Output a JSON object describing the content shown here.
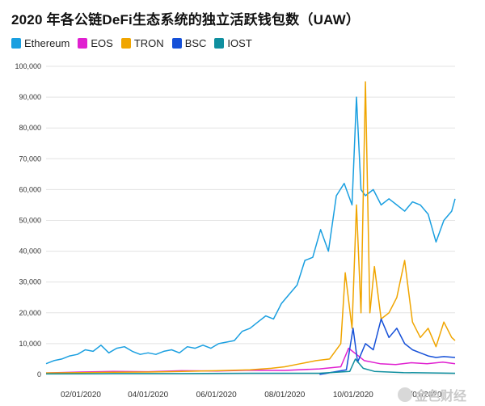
{
  "title": "2020 年各公链DeFi生态系统的独立活跃钱包数（UAW）",
  "watermark": "金色财经",
  "legend": [
    {
      "name": "Ethereum",
      "color": "#1a9fe0"
    },
    {
      "name": "EOS",
      "color": "#e020d0"
    },
    {
      "name": "TRON",
      "color": "#f0a500"
    },
    {
      "name": "BSC",
      "color": "#1550d8"
    },
    {
      "name": "IOST",
      "color": "#0f8f9f"
    }
  ],
  "chart_data": {
    "type": "line",
    "title": "2020 年各公链DeFi生态系统的独立活跃钱包数（UAW）",
    "xlabel": "",
    "ylabel": "",
    "xlim": [
      "2020-01-01",
      "2020-12-31"
    ],
    "ylim": [
      0,
      100000
    ],
    "y_ticks": [
      "0",
      "10,000",
      "20,000",
      "30,000",
      "40,000",
      "50,000",
      "60,000",
      "70,000",
      "80,000",
      "90,000",
      "100,000"
    ],
    "x_ticks": [
      "02/01/2020",
      "04/01/2020",
      "06/01/2020",
      "08/01/2020",
      "10/01/2020",
      "12/01/2020"
    ],
    "grid": "horizontal",
    "legend_position": "top-left",
    "series": [
      {
        "name": "Ethereum",
        "color": "#1a9fe0",
        "points": [
          [
            "2020-01-01",
            3500
          ],
          [
            "2020-01-08",
            4500
          ],
          [
            "2020-01-15",
            5000
          ],
          [
            "2020-01-22",
            6000
          ],
          [
            "2020-01-29",
            6500
          ],
          [
            "2020-02-05",
            8000
          ],
          [
            "2020-02-12",
            7500
          ],
          [
            "2020-02-19",
            9500
          ],
          [
            "2020-02-26",
            7000
          ],
          [
            "2020-03-04",
            8500
          ],
          [
            "2020-03-11",
            9000
          ],
          [
            "2020-03-18",
            7500
          ],
          [
            "2020-03-25",
            6500
          ],
          [
            "2020-04-01",
            7000
          ],
          [
            "2020-04-08",
            6500
          ],
          [
            "2020-04-15",
            7500
          ],
          [
            "2020-04-22",
            8000
          ],
          [
            "2020-04-29",
            7000
          ],
          [
            "2020-05-06",
            9000
          ],
          [
            "2020-05-13",
            8500
          ],
          [
            "2020-05-20",
            9500
          ],
          [
            "2020-05-27",
            8500
          ],
          [
            "2020-06-03",
            10000
          ],
          [
            "2020-06-10",
            10500
          ],
          [
            "2020-06-17",
            11000
          ],
          [
            "2020-06-24",
            14000
          ],
          [
            "2020-07-01",
            15000
          ],
          [
            "2020-07-08",
            17000
          ],
          [
            "2020-07-15",
            19000
          ],
          [
            "2020-07-22",
            18000
          ],
          [
            "2020-07-29",
            23000
          ],
          [
            "2020-08-05",
            26000
          ],
          [
            "2020-08-12",
            29000
          ],
          [
            "2020-08-19",
            37000
          ],
          [
            "2020-08-26",
            38000
          ],
          [
            "2020-09-02",
            47000
          ],
          [
            "2020-09-09",
            40000
          ],
          [
            "2020-09-16",
            58000
          ],
          [
            "2020-09-23",
            62000
          ],
          [
            "2020-09-30",
            55000
          ],
          [
            "2020-10-04",
            90000
          ],
          [
            "2020-10-08",
            60000
          ],
          [
            "2020-10-12",
            58000
          ],
          [
            "2020-10-19",
            60000
          ],
          [
            "2020-10-26",
            55000
          ],
          [
            "2020-11-02",
            57000
          ],
          [
            "2020-11-09",
            55000
          ],
          [
            "2020-11-16",
            53000
          ],
          [
            "2020-11-23",
            56000
          ],
          [
            "2020-11-30",
            55000
          ],
          [
            "2020-12-07",
            52000
          ],
          [
            "2020-12-14",
            43000
          ],
          [
            "2020-12-21",
            50000
          ],
          [
            "2020-12-28",
            53000
          ],
          [
            "2020-12-31",
            57000
          ]
        ]
      },
      {
        "name": "EOS",
        "color": "#e020d0",
        "points": [
          [
            "2020-01-01",
            500
          ],
          [
            "2020-02-01",
            800
          ],
          [
            "2020-03-01",
            1000
          ],
          [
            "2020-04-01",
            900
          ],
          [
            "2020-05-01",
            1200
          ],
          [
            "2020-06-01",
            1100
          ],
          [
            "2020-07-01",
            1400
          ],
          [
            "2020-08-01",
            1300
          ],
          [
            "2020-09-01",
            1800
          ],
          [
            "2020-09-20",
            2500
          ],
          [
            "2020-09-27",
            8500
          ],
          [
            "2020-10-04",
            6500
          ],
          [
            "2020-10-11",
            4500
          ],
          [
            "2020-10-25",
            3500
          ],
          [
            "2020-11-08",
            3200
          ],
          [
            "2020-11-22",
            3800
          ],
          [
            "2020-12-06",
            3500
          ],
          [
            "2020-12-20",
            4000
          ],
          [
            "2020-12-31",
            3500
          ]
        ]
      },
      {
        "name": "TRON",
        "color": "#f0a500",
        "points": [
          [
            "2020-01-01",
            500
          ],
          [
            "2020-02-01",
            600
          ],
          [
            "2020-03-01",
            700
          ],
          [
            "2020-04-01",
            800
          ],
          [
            "2020-05-01",
            1000
          ],
          [
            "2020-06-01",
            1200
          ],
          [
            "2020-07-01",
            1500
          ],
          [
            "2020-07-20",
            2000
          ],
          [
            "2020-08-01",
            2500
          ],
          [
            "2020-08-15",
            3500
          ],
          [
            "2020-08-29",
            4500
          ],
          [
            "2020-09-10",
            5000
          ],
          [
            "2020-09-20",
            10000
          ],
          [
            "2020-09-24",
            33000
          ],
          [
            "2020-09-30",
            15000
          ],
          [
            "2020-10-04",
            55000
          ],
          [
            "2020-10-08",
            20000
          ],
          [
            "2020-10-12",
            95000
          ],
          [
            "2020-10-16",
            20000
          ],
          [
            "2020-10-20",
            35000
          ],
          [
            "2020-10-26",
            18000
          ],
          [
            "2020-11-02",
            20000
          ],
          [
            "2020-11-09",
            25000
          ],
          [
            "2020-11-16",
            37000
          ],
          [
            "2020-11-23",
            17000
          ],
          [
            "2020-11-30",
            12000
          ],
          [
            "2020-12-07",
            15000
          ],
          [
            "2020-12-14",
            9000
          ],
          [
            "2020-12-21",
            17000
          ],
          [
            "2020-12-28",
            12000
          ],
          [
            "2020-12-31",
            11000
          ]
        ]
      },
      {
        "name": "BSC",
        "color": "#1550d8",
        "points": [
          [
            "2020-09-01",
            0
          ],
          [
            "2020-09-25",
            1500
          ],
          [
            "2020-10-01",
            15000
          ],
          [
            "2020-10-05",
            4000
          ],
          [
            "2020-10-12",
            10000
          ],
          [
            "2020-10-19",
            8000
          ],
          [
            "2020-10-26",
            18000
          ],
          [
            "2020-11-02",
            12000
          ],
          [
            "2020-11-09",
            15000
          ],
          [
            "2020-11-16",
            10000
          ],
          [
            "2020-11-23",
            8000
          ],
          [
            "2020-11-30",
            7000
          ],
          [
            "2020-12-07",
            6000
          ],
          [
            "2020-12-14",
            5500
          ],
          [
            "2020-12-21",
            5800
          ],
          [
            "2020-12-31",
            5500
          ]
        ]
      },
      {
        "name": "IOST",
        "color": "#0f8f9f",
        "points": [
          [
            "2020-01-01",
            200
          ],
          [
            "2020-03-01",
            300
          ],
          [
            "2020-05-01",
            300
          ],
          [
            "2020-07-01",
            400
          ],
          [
            "2020-09-01",
            400
          ],
          [
            "2020-09-28",
            1000
          ],
          [
            "2020-10-03",
            5000
          ],
          [
            "2020-10-10",
            2000
          ],
          [
            "2020-10-20",
            1000
          ],
          [
            "2020-11-15",
            600
          ],
          [
            "2020-12-31",
            400
          ]
        ]
      }
    ]
  }
}
